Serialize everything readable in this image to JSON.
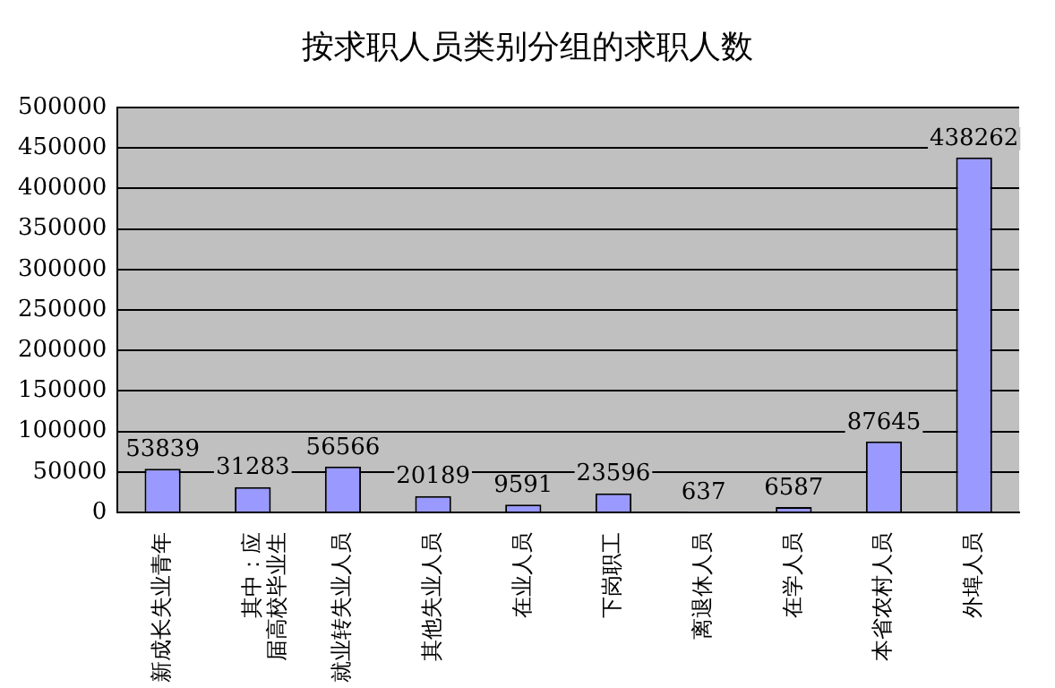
{
  "chart_data": {
    "type": "bar",
    "title": "按求职人员类别分组的求职人数",
    "categories": [
      "新成长失业青年",
      "其中：应届高校毕业生",
      "就业转失业人员",
      "其他失业人员",
      "在业人员",
      "下岗职工",
      "离退休人员",
      "在学人员",
      "本省农村人员",
      "外埠人员"
    ],
    "values": [
      53839,
      31283,
      56566,
      20189,
      9591,
      23596,
      637,
      6587,
      87645,
      438262
    ],
    "color": "#9999ff",
    "ylim": [
      0,
      500000
    ],
    "yticks": [
      0,
      50000,
      100000,
      150000,
      200000,
      250000,
      300000,
      350000,
      400000,
      450000,
      500000
    ],
    "grid": "y",
    "data_labels": true,
    "legend": false
  }
}
